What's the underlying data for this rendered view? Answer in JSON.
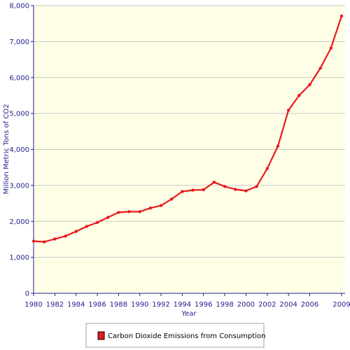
{
  "chart_data": {
    "type": "line",
    "title": "",
    "xlabel": "Year",
    "ylabel": "Million Metric Tons of CO2",
    "ylim": [
      0,
      8000
    ],
    "xlim": [
      1980,
      2009
    ],
    "grid": "horizontal",
    "legend_position": "bottom",
    "y_ticks": [
      0,
      1000,
      2000,
      3000,
      4000,
      5000,
      6000,
      7000,
      8000
    ],
    "y_tick_labels": [
      "0",
      "1,000",
      "2,000",
      "3,000",
      "4,000",
      "5,000",
      "6,000",
      "7,000",
      "8,000"
    ],
    "x_ticks": [
      1980,
      1982,
      1984,
      1986,
      1988,
      1990,
      1992,
      1994,
      1996,
      1998,
      2000,
      2002,
      2004,
      2006,
      2009
    ],
    "x_tick_labels": [
      "1980",
      "1982",
      "1984",
      "1986",
      "1988",
      "1990",
      "1992",
      "1994",
      "1996",
      "1998",
      "2000",
      "2002",
      "2004",
      "2006",
      "2009"
    ],
    "x": [
      1980,
      1981,
      1982,
      1983,
      1984,
      1985,
      1986,
      1987,
      1988,
      1989,
      1990,
      1991,
      1992,
      1993,
      1994,
      1995,
      1996,
      1997,
      1998,
      1999,
      2000,
      2001,
      2002,
      2003,
      2004,
      2005,
      2006,
      2007,
      2008,
      2009
    ],
    "series": [
      {
        "name": "Carbon Dioxide Emissions from Consumption",
        "color": "#e8191f",
        "values": [
          1450,
          1430,
          1510,
          1590,
          1720,
          1860,
          1970,
          2110,
          2250,
          2270,
          2270,
          2370,
          2440,
          2620,
          2830,
          2870,
          2880,
          3090,
          2970,
          2890,
          2850,
          2970,
          3470,
          4090,
          5090,
          5500,
          5800,
          6260,
          6820,
          7710
        ]
      }
    ]
  },
  "colors": {
    "plot_background": "#ffffe8",
    "axis": "#1f1f8f",
    "grid": "#c8c8c8"
  }
}
